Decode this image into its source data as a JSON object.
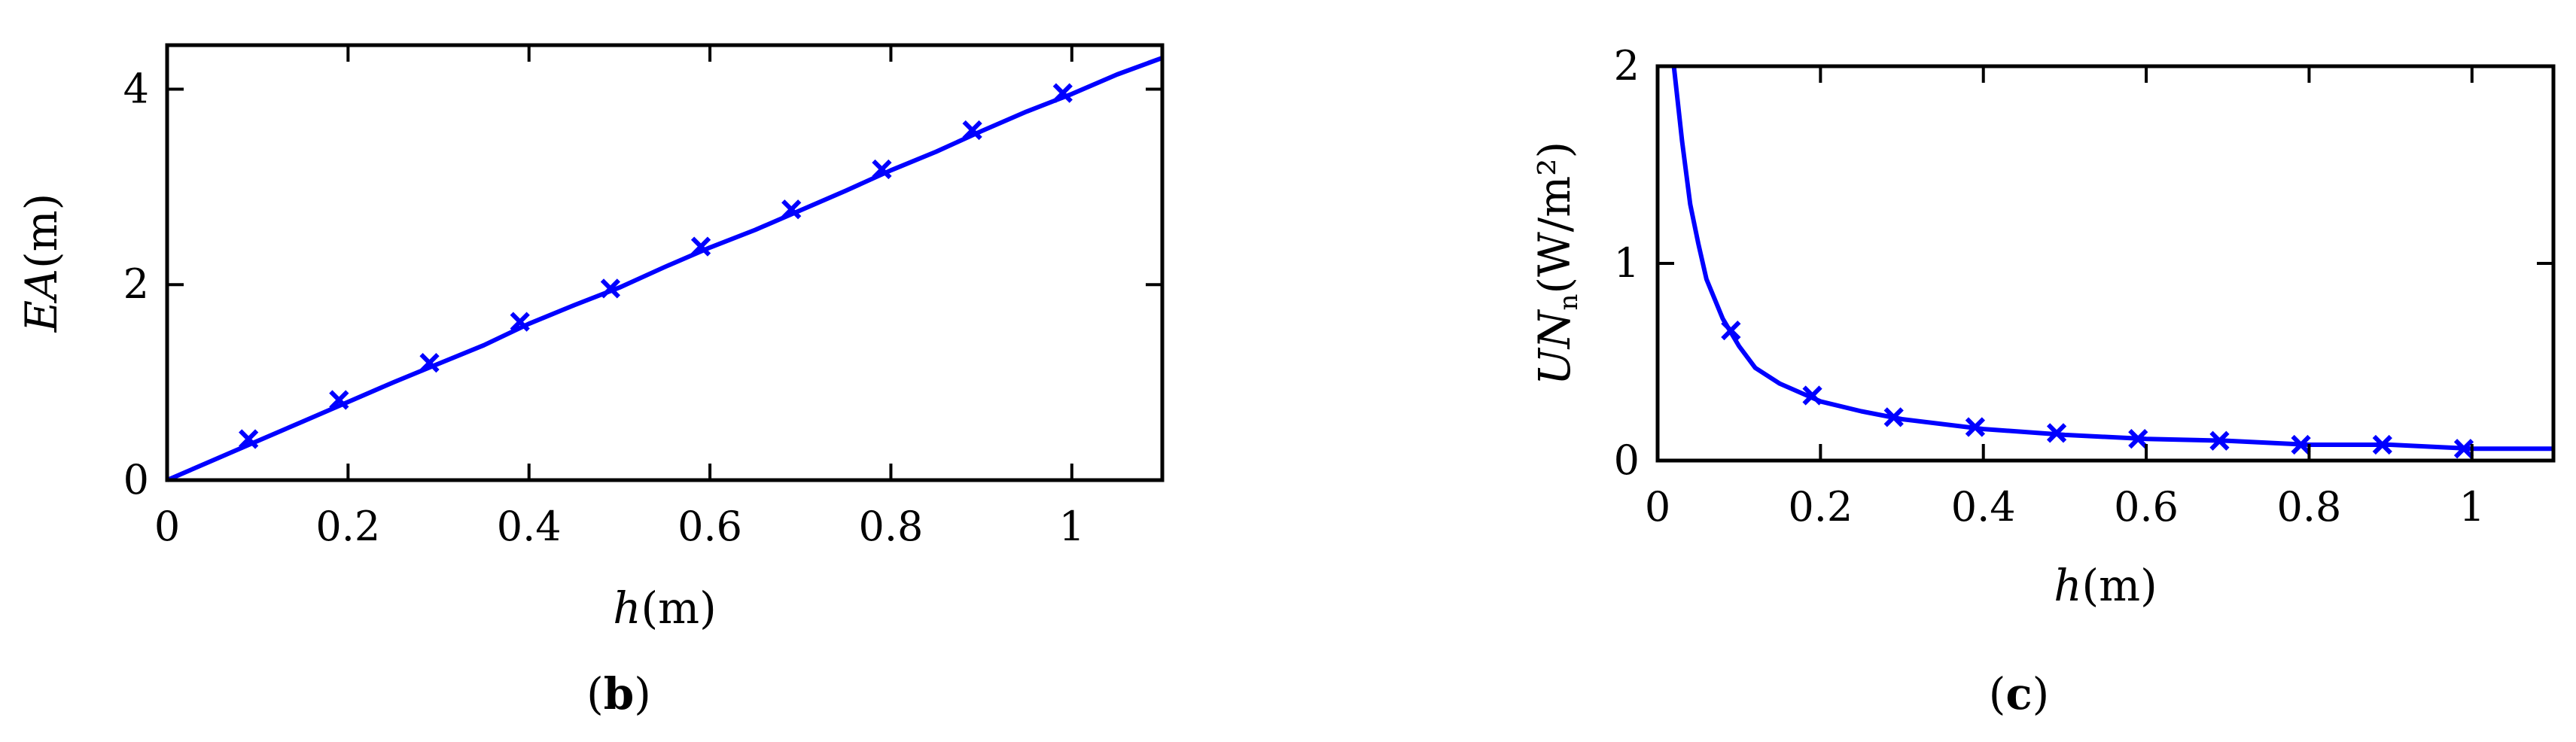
{
  "chart_data": [
    {
      "panel": "b",
      "type": "line",
      "xlabel": {
        "var": "h",
        "unit": "(m)"
      },
      "ylabel": {
        "var": "EA",
        "unit": "(m)"
      },
      "xlim": [
        0,
        1.1
      ],
      "ylim": [
        0,
        4.45
      ],
      "xticks": [
        0,
        0.2,
        0.4,
        0.6,
        0.8,
        1
      ],
      "xtick_labels": [
        "0",
        "0.2",
        "0.4",
        "0.6",
        "0.8",
        "1"
      ],
      "yticks": [
        0,
        2,
        4
      ],
      "ytick_labels": [
        "0",
        "2",
        "4"
      ],
      "grid": false,
      "color": "#0000ff",
      "series": [
        {
          "x": [
            0,
            0.05,
            0.1,
            0.15,
            0.2,
            0.25,
            0.3,
            0.35,
            0.4,
            0.45,
            0.5,
            0.55,
            0.6,
            0.65,
            0.7,
            0.75,
            0.8,
            0.85,
            0.9,
            0.95,
            1.0,
            1.05,
            1.1
          ],
          "y": [
            0,
            0.2,
            0.4,
            0.6,
            0.8,
            1.0,
            1.19,
            1.38,
            1.6,
            1.79,
            1.97,
            2.18,
            2.38,
            2.56,
            2.76,
            2.96,
            3.17,
            3.36,
            3.57,
            3.77,
            3.95,
            4.15,
            4.32
          ],
          "markers_x": [
            0.09,
            0.19,
            0.29,
            0.39,
            0.49,
            0.59,
            0.69,
            0.79,
            0.89,
            0.99
          ],
          "markers_y": [
            0.42,
            0.82,
            1.2,
            1.62,
            1.96,
            2.39,
            2.77,
            3.18,
            3.58,
            3.96
          ]
        }
      ]
    },
    {
      "panel": "c",
      "type": "line",
      "xlabel": {
        "var": "h",
        "unit": "(m)"
      },
      "ylabel": {
        "var": "UN",
        "sub": "n",
        "unit": "(W/m²)"
      },
      "xlim": [
        0,
        1.1
      ],
      "ylim": [
        0,
        2
      ],
      "xticks": [
        0,
        0.2,
        0.4,
        0.6,
        0.8,
        1
      ],
      "xtick_labels": [
        "0",
        "0.2",
        "0.4",
        "0.6",
        "0.8",
        "1"
      ],
      "yticks": [
        0,
        1,
        2
      ],
      "ytick_labels": [
        "0",
        "1",
        "2"
      ],
      "grid": false,
      "color": "#0000ff",
      "series": [
        {
          "x": [
            0.02,
            0.03,
            0.04,
            0.05,
            0.06,
            0.08,
            0.1,
            0.12,
            0.15,
            0.2,
            0.25,
            0.3,
            0.4,
            0.5,
            0.6,
            0.7,
            0.8,
            0.9,
            1.0,
            1.1
          ],
          "y": [
            2.0,
            1.62,
            1.3,
            1.1,
            0.92,
            0.72,
            0.58,
            0.47,
            0.39,
            0.3,
            0.25,
            0.21,
            0.16,
            0.13,
            0.11,
            0.1,
            0.08,
            0.08,
            0.06,
            0.06
          ],
          "markers_x": [
            0.09,
            0.19,
            0.29,
            0.39,
            0.49,
            0.59,
            0.69,
            0.79,
            0.89,
            0.99
          ],
          "markers_y": [
            0.66,
            0.33,
            0.22,
            0.17,
            0.14,
            0.11,
            0.1,
            0.08,
            0.08,
            0.06
          ]
        }
      ]
    }
  ]
}
